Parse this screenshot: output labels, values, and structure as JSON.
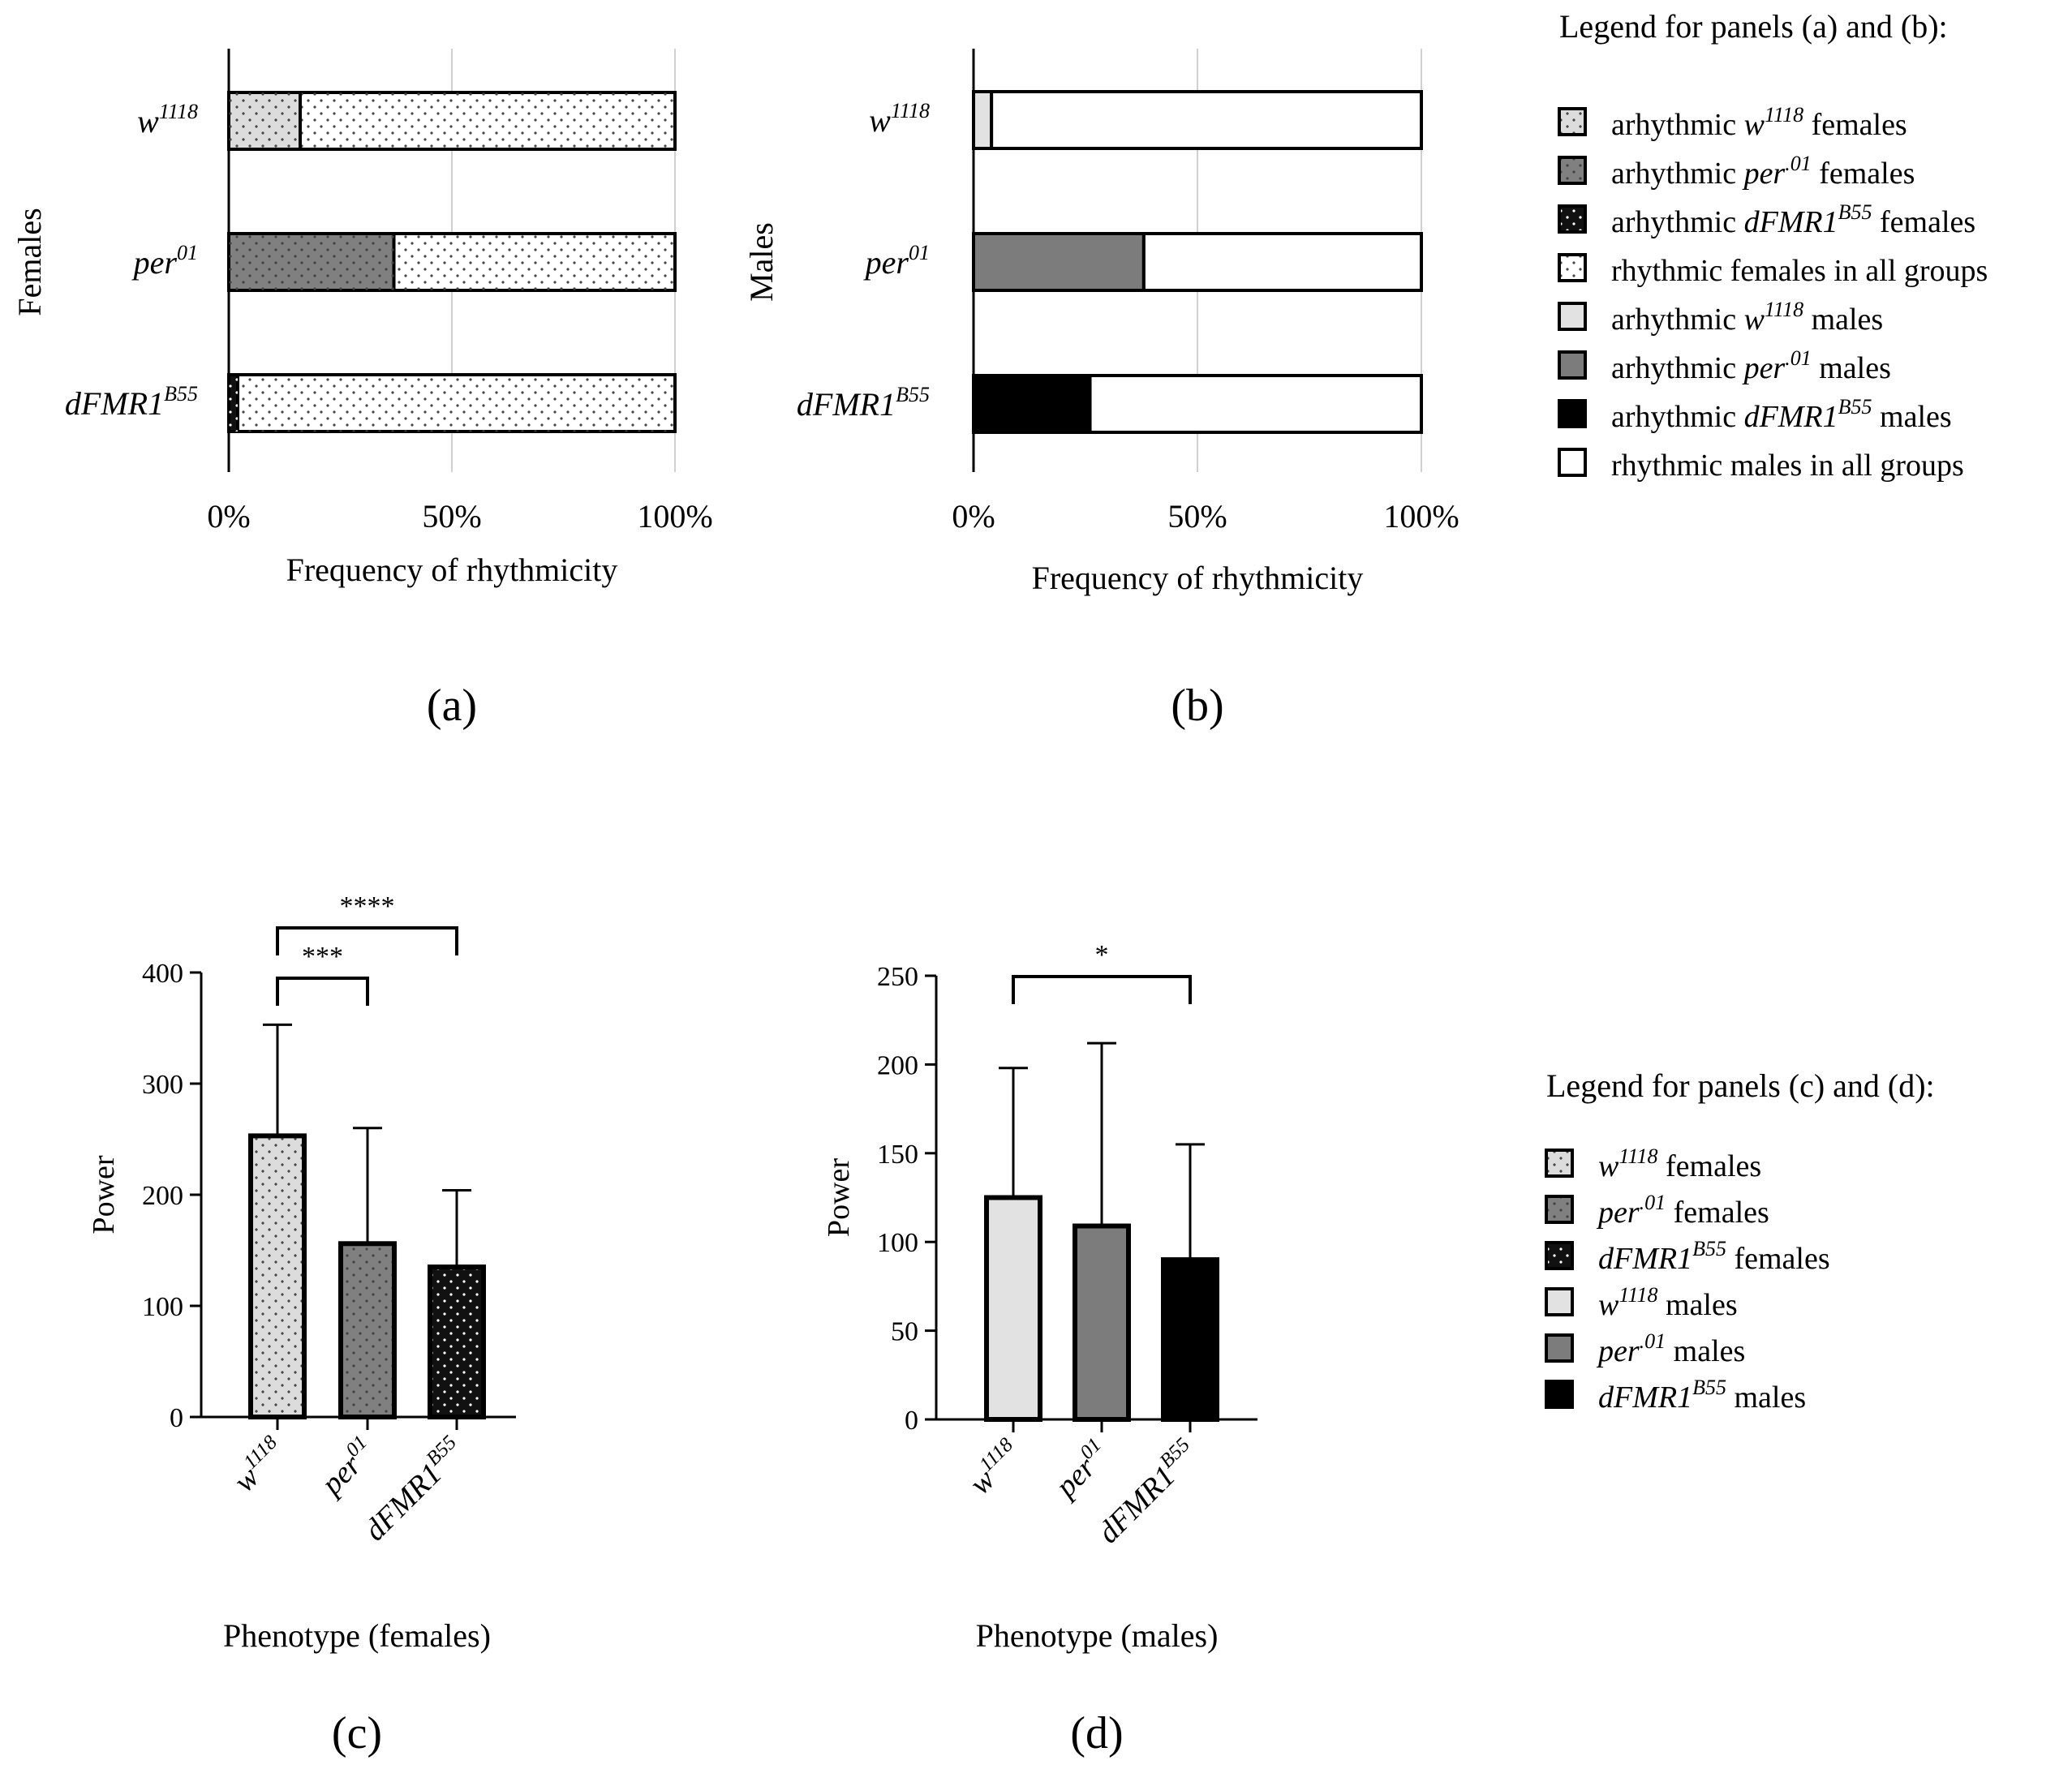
{
  "chart_data": [
    {
      "panel": "a",
      "type": "bar",
      "orientation": "horizontal",
      "stacked": true,
      "title": "",
      "panel_label": "(a)",
      "ylabel": "Females",
      "xlabel": "Frequency  of rhythmicity",
      "xlim": [
        0,
        100
      ],
      "xticks": [
        "0%",
        "50%",
        "100%"
      ],
      "grid": true,
      "categories": [
        {
          "base": "w",
          "sup": "1118"
        },
        {
          "base": "per",
          "sup": "01"
        },
        {
          "base": "dFMR1",
          "sup": "B55"
        }
      ],
      "series": [
        {
          "name": "arhythmic",
          "values": [
            16,
            37,
            2
          ]
        },
        {
          "name": "rhythmic females in all groups",
          "values": [
            84,
            63,
            98
          ]
        }
      ]
    },
    {
      "panel": "b",
      "type": "bar",
      "orientation": "horizontal",
      "stacked": true,
      "title": "",
      "panel_label": "(b)",
      "ylabel": "Males",
      "xlabel": "Frequency  of rhythmicity",
      "xlim": [
        0,
        100
      ],
      "xticks": [
        "0%",
        "50%",
        "100%"
      ],
      "grid": true,
      "categories": [
        {
          "base": "w",
          "sup": "1118"
        },
        {
          "base": "per",
          "sup": "01"
        },
        {
          "base": "dFMR1",
          "sup": "B55"
        }
      ],
      "series": [
        {
          "name": "arhythmic",
          "values": [
            4,
            38,
            26
          ]
        },
        {
          "name": "rhythmic males in all groups",
          "values": [
            96,
            62,
            74
          ]
        }
      ]
    },
    {
      "panel": "c",
      "type": "bar",
      "title": "",
      "panel_label": "(c)",
      "ylabel": "Power",
      "xlabel": "Phenotype  (females)",
      "ylim": [
        0,
        400
      ],
      "yticks": [
        0,
        100,
        200,
        300,
        400
      ],
      "categories": [
        {
          "base": "w",
          "sup": "1118"
        },
        {
          "base": "per",
          "sup": "01"
        },
        {
          "base": "dFMR1",
          "sup": "B55"
        }
      ],
      "values": [
        253,
        156,
        135
      ],
      "errors": [
        100,
        104,
        69
      ],
      "significance": [
        {
          "from": 0,
          "to": 1,
          "label": "***"
        },
        {
          "from": 0,
          "to": 2,
          "label": "****"
        }
      ]
    },
    {
      "panel": "d",
      "type": "bar",
      "title": "",
      "panel_label": "(d)",
      "ylabel": "Power",
      "xlabel": "Phenotype  (males)",
      "ylim": [
        0,
        250
      ],
      "yticks": [
        0,
        50,
        100,
        150,
        200,
        250
      ],
      "categories": [
        {
          "base": "w",
          "sup": "1118"
        },
        {
          "base": "per",
          "sup": "01"
        },
        {
          "base": "dFMR1",
          "sup": "B55"
        }
      ],
      "values": [
        125,
        109,
        90
      ],
      "errors": [
        73,
        103,
        65
      ],
      "significance": [
        {
          "from": 0,
          "to": 2,
          "label": "*"
        }
      ]
    }
  ],
  "legend_ab": {
    "title": "Legend for panels (a) and (b):",
    "items": [
      {
        "key": "f_w",
        "pre": "arhythmic  ",
        "base": "w",
        "sup": "1118",
        "post": " females"
      },
      {
        "key": "f_per",
        "pre": "arhythmic  ",
        "base": "per",
        "sup": ".01",
        "post": " females"
      },
      {
        "key": "f_dfmr",
        "pre": "arhythmic  ",
        "base": "dFMR1",
        "sup": "B55",
        "post": " females"
      },
      {
        "key": "f_rhy",
        "pre": "rhythmic  females  in  all  groups",
        "base": "",
        "sup": "",
        "post": ""
      },
      {
        "key": "m_w",
        "pre": "arhythmic  ",
        "base": "w",
        "sup": "1118",
        "post": " males"
      },
      {
        "key": "m_per",
        "pre": "arhythmic  ",
        "base": "per",
        "sup": ".01",
        "post": " males"
      },
      {
        "key": "m_dfmr",
        "pre": "arhythmic  ",
        "base": "dFMR1",
        "sup": "B55",
        "post": " males"
      },
      {
        "key": "m_rhy",
        "pre": "rhythmic  males  in  all  groups",
        "base": "",
        "sup": "",
        "post": ""
      }
    ]
  },
  "legend_cd": {
    "title": "Legend for panels (c) and (d):",
    "items": [
      {
        "key": "f_w",
        "pre": "",
        "base": "w",
        "sup": "1118",
        "post": " females"
      },
      {
        "key": "f_per",
        "pre": "",
        "base": "per",
        "sup": ".01",
        "post": " females"
      },
      {
        "key": "f_dfmr",
        "pre": "",
        "base": "dFMR1",
        "sup": "B55",
        "post": " females"
      },
      {
        "key": "m_w",
        "pre": "",
        "base": "w",
        "sup": "1118",
        "post": " males"
      },
      {
        "key": "m_per",
        "pre": "",
        "base": "per",
        "sup": ".01",
        "post": " males"
      },
      {
        "key": "m_dfmr",
        "pre": "",
        "base": "dFMR1",
        "sup": "B55",
        "post": " males"
      }
    ]
  },
  "colors": {
    "w_female": "#dcdcdc",
    "per_female": "#808080",
    "dfmr_female": "#111111",
    "rhythmic_female": "#ffffff",
    "w_male": "#e2e2e2",
    "per_male": "#7c7c7c",
    "dfmr_male": "#000000",
    "rhythmic_male": "#ffffff",
    "gridline": "#d0d0d0"
  }
}
